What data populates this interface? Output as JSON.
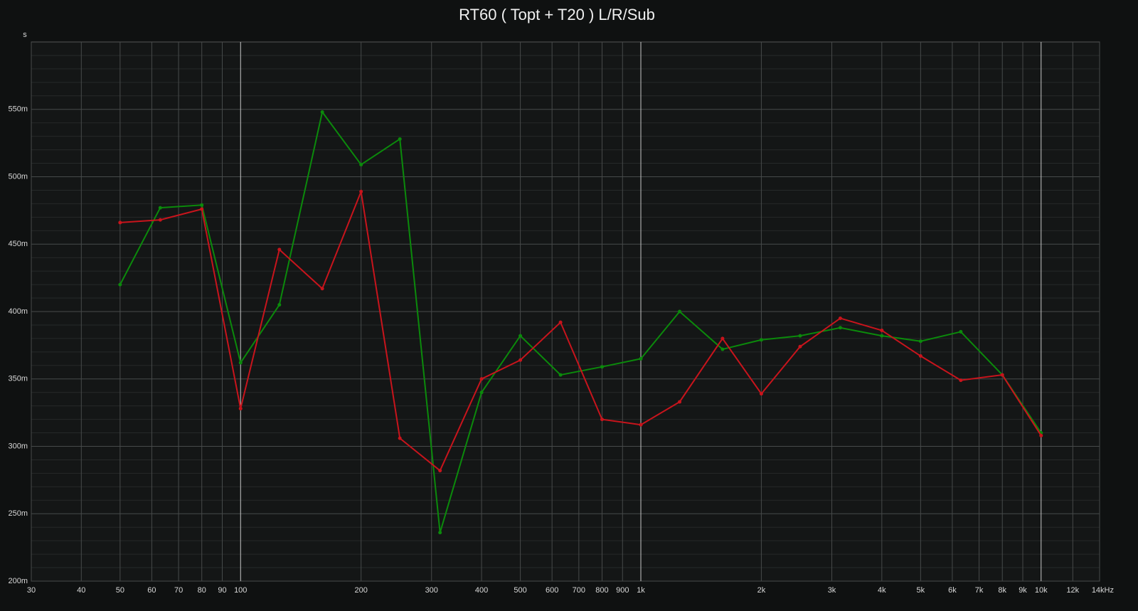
{
  "chart_data": {
    "type": "line",
    "title": "RT60 ( Topt + T20 ) L/R/Sub",
    "y_label": "s",
    "x_log": true,
    "grid": true,
    "x": [
      50,
      63,
      80,
      100,
      125,
      160,
      200,
      250,
      315,
      400,
      500,
      630,
      800,
      1000,
      1250,
      1600,
      2000,
      2500,
      3150,
      4000,
      5000,
      6300,
      8000,
      10000
    ],
    "series": [
      {
        "color": "#0b8a0b",
        "values": [
          0.42,
          0.477,
          0.479,
          0.362,
          0.405,
          0.548,
          0.509,
          0.528,
          0.236,
          0.34,
          0.382,
          0.353,
          0.359,
          0.365,
          0.4,
          0.372,
          0.379,
          0.382,
          0.388,
          0.382,
          0.378,
          0.385,
          0.353,
          0.31
        ]
      },
      {
        "color": "#c8141c",
        "values": [
          0.466,
          0.468,
          0.476,
          0.328,
          0.446,
          0.417,
          0.489,
          0.306,
          0.282,
          0.35,
          0.364,
          0.392,
          0.32,
          0.316,
          0.333,
          0.38,
          0.339,
          0.374,
          0.395,
          0.386,
          0.367,
          0.349,
          0.353,
          0.308
        ]
      }
    ],
    "xlim": [
      30,
      14000
    ],
    "xticks": [
      30,
      40,
      50,
      60,
      70,
      80,
      90,
      100,
      200,
      300,
      400,
      500,
      600,
      700,
      800,
      900,
      {
        "value": 1000,
        "label": "1k"
      },
      {
        "value": 2000,
        "label": "2k"
      },
      {
        "value": 3000,
        "label": "3k"
      },
      {
        "value": 4000,
        "label": "4k"
      },
      {
        "value": 5000,
        "label": "5k"
      },
      {
        "value": 6000,
        "label": "6k"
      },
      {
        "value": 7000,
        "label": "7k"
      },
      {
        "value": 8000,
        "label": "8k"
      },
      {
        "value": 9000,
        "label": "9k"
      },
      {
        "value": 10000,
        "label": "10k"
      },
      {
        "value": 12000,
        "label": "12k"
      },
      {
        "value": 14000,
        "label": "14kHz"
      }
    ],
    "ylim": [
      0.2,
      0.6
    ],
    "yticks": [
      {
        "value": 0.2,
        "label": "200m"
      },
      {
        "value": 0.25,
        "label": "250m"
      },
      {
        "value": 0.3,
        "label": "300m"
      },
      {
        "value": 0.35,
        "label": "350m"
      },
      {
        "value": 0.4,
        "label": "400m"
      },
      {
        "value": 0.45,
        "label": "450m"
      },
      {
        "value": 0.5,
        "label": "500m"
      },
      {
        "value": 0.55,
        "label": "550m"
      }
    ],
    "y_minor_ticks": [
      0.21,
      0.22,
      0.23,
      0.24,
      0.26,
      0.27,
      0.28,
      0.29,
      0.31,
      0.32,
      0.33,
      0.34,
      0.36,
      0.37,
      0.38,
      0.39,
      0.41,
      0.42,
      0.43,
      0.44,
      0.46,
      0.47,
      0.48,
      0.49,
      0.51,
      0.52,
      0.53,
      0.54,
      0.56,
      0.57,
      0.58,
      0.59
    ]
  }
}
